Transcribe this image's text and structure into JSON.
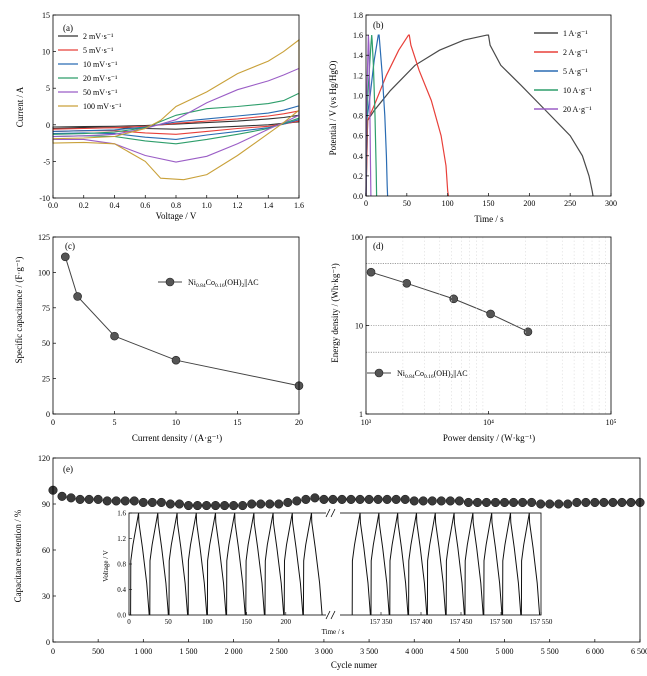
{
  "chart_data": [
    {
      "id": "a",
      "panel_label": "(a)",
      "type": "line",
      "xlabel": "Voltage / V",
      "ylabel": "Current / A",
      "xlim": [
        0,
        1.6
      ],
      "ylim": [
        -10,
        15
      ],
      "xticks": [
        0.0,
        0.2,
        0.4,
        0.6,
        0.8,
        1.0,
        1.2,
        1.4,
        1.6
      ],
      "xtick_labels": [
        "0.0",
        "0.2",
        "0.4",
        "0.6",
        "0.8",
        "1.0",
        "1.2",
        "1.4",
        "1.6"
      ],
      "yticks": [
        -10,
        -5,
        0,
        5,
        10,
        15
      ],
      "ytick_labels": [
        "-10",
        "-5",
        "0",
        "5",
        "10",
        "15"
      ],
      "legend_position": "top-left",
      "series": [
        {
          "name": "2 mV·s⁻¹",
          "color": "#333333",
          "x": [
            0,
            0.2,
            0.4,
            0.6,
            0.8,
            1.0,
            1.2,
            1.4,
            1.5,
            1.6,
            1.6,
            1.5,
            1.4,
            1.2,
            1.0,
            0.8,
            0.6,
            0.4,
            0.2,
            0
          ],
          "y": [
            -0.3,
            -0.25,
            -0.2,
            -0.1,
            0.1,
            0.3,
            0.5,
            0.8,
            1.0,
            1.3,
            0.4,
            0.2,
            0.0,
            -0.2,
            -0.4,
            -0.6,
            -0.5,
            -0.4,
            -0.4,
            -0.5
          ]
        },
        {
          "name": "5 mV·s⁻¹",
          "color": "#e8403a",
          "x": [
            0,
            0.2,
            0.4,
            0.6,
            0.8,
            1.0,
            1.2,
            1.4,
            1.5,
            1.6,
            1.6,
            1.5,
            1.4,
            1.2,
            1.0,
            0.8,
            0.6,
            0.4,
            0.2,
            0
          ],
          "y": [
            -0.6,
            -0.5,
            -0.4,
            -0.2,
            0.2,
            0.5,
            0.8,
            1.2,
            1.5,
            1.9,
            0.5,
            0.1,
            -0.2,
            -0.5,
            -0.9,
            -1.3,
            -1.1,
            -0.8,
            -0.8,
            -0.9
          ]
        },
        {
          "name": "10 mV·s⁻¹",
          "color": "#2a6cb3",
          "x": [
            0,
            0.2,
            0.4,
            0.6,
            0.8,
            1.0,
            1.2,
            1.4,
            1.5,
            1.6,
            1.6,
            1.5,
            1.4,
            1.2,
            1.0,
            0.8,
            0.6,
            0.4,
            0.2,
            0
          ],
          "y": [
            -0.9,
            -0.8,
            -0.7,
            -0.3,
            0.4,
            0.8,
            1.2,
            1.6,
            2.0,
            2.6,
            0.7,
            0.1,
            -0.4,
            -0.9,
            -1.4,
            -2.0,
            -1.7,
            -1.2,
            -1.1,
            -1.2
          ]
        },
        {
          "name": "20 mV·s⁻¹",
          "color": "#2e9e6b",
          "x": [
            0,
            0.2,
            0.4,
            0.6,
            0.8,
            1.0,
            1.2,
            1.4,
            1.5,
            1.6,
            1.6,
            1.5,
            1.4,
            1.2,
            1.0,
            0.8,
            0.6,
            0.4,
            0.2,
            0
          ],
          "y": [
            -1.3,
            -1.2,
            -1.0,
            -0.4,
            1.3,
            2.2,
            2.5,
            2.9,
            3.3,
            4.3,
            0.9,
            0.2,
            -0.5,
            -1.3,
            -2.0,
            -2.6,
            -2.2,
            -1.6,
            -1.5,
            -1.6
          ]
        },
        {
          "name": "50 mV·s⁻¹",
          "color": "#9b5ec6",
          "x": [
            0,
            0.2,
            0.4,
            0.6,
            0.8,
            1.0,
            1.2,
            1.4,
            1.5,
            1.6,
            1.6,
            1.5,
            1.4,
            1.2,
            1.0,
            0.8,
            0.6,
            0.4,
            0.2,
            0
          ],
          "y": [
            -1.6,
            -1.5,
            -1.3,
            -0.5,
            0.7,
            3.0,
            4.8,
            6.0,
            6.8,
            7.7,
            1.3,
            0.3,
            -0.6,
            -2.6,
            -4.3,
            -5.1,
            -4.2,
            -2.6,
            -2.0,
            -2.0
          ]
        },
        {
          "name": "100 mV·s⁻¹",
          "color": "#c9a13a",
          "x": [
            0,
            0.2,
            0.4,
            0.6,
            0.7,
            0.8,
            1.0,
            1.2,
            1.4,
            1.5,
            1.6,
            1.6,
            1.5,
            1.4,
            1.2,
            1.0,
            0.85,
            0.7,
            0.6,
            0.4,
            0.2,
            0
          ],
          "y": [
            -1.9,
            -1.8,
            -1.6,
            -0.5,
            0.6,
            2.5,
            4.5,
            7.0,
            8.7,
            10.0,
            11.6,
            2.0,
            0.3,
            -1.2,
            -4.2,
            -6.8,
            -7.5,
            -7.3,
            -5.0,
            -2.6,
            -2.4,
            -2.5
          ]
        }
      ]
    },
    {
      "id": "b",
      "panel_label": "(b)",
      "type": "line",
      "xlabel": "Time / s",
      "ylabel": "Potential / V (vs Hg/HgO)",
      "xlim": [
        0,
        300
      ],
      "ylim": [
        0,
        1.8
      ],
      "xticks": [
        0,
        50,
        100,
        150,
        200,
        250,
        300
      ],
      "xtick_labels": [
        "0",
        "50",
        "100",
        "150",
        "200",
        "250",
        "300"
      ],
      "yticks": [
        0.0,
        0.2,
        0.4,
        0.6,
        0.8,
        1.0,
        1.2,
        1.4,
        1.6,
        1.8
      ],
      "ytick_labels": [
        "0.0",
        "0.2",
        "0.4",
        "0.6",
        "0.8",
        "1.0",
        "1.2",
        "1.4",
        "1.6",
        "1.8"
      ],
      "legend_position": "top-right",
      "series": [
        {
          "name": "1 A·g⁻¹",
          "color": "#4a4a4a",
          "x": [
            0,
            2,
            10,
            30,
            60,
            90,
            120,
            148,
            150,
            152,
            165,
            190,
            220,
            250,
            265,
            273,
            277,
            278
          ],
          "y": [
            0,
            0.75,
            0.85,
            1.05,
            1.3,
            1.45,
            1.55,
            1.6,
            1.6,
            1.5,
            1.3,
            1.1,
            0.85,
            0.6,
            0.4,
            0.2,
            0.05,
            0
          ]
        },
        {
          "name": "2 A·g⁻¹",
          "color": "#e8403a",
          "x": [
            0,
            2,
            10,
            25,
            40,
            52,
            53,
            55,
            65,
            80,
            92,
            98,
            100,
            101
          ],
          "y": [
            0,
            0.75,
            0.9,
            1.2,
            1.45,
            1.6,
            1.6,
            1.5,
            1.25,
            0.95,
            0.6,
            0.3,
            0.05,
            0
          ]
        },
        {
          "name": "5 A·g⁻¹",
          "color": "#2a6cb3",
          "x": [
            0,
            1,
            5,
            10,
            15,
            16,
            17,
            20,
            23,
            25,
            26,
            26.5
          ],
          "y": [
            0,
            0.75,
            1.0,
            1.35,
            1.6,
            1.6,
            1.5,
            1.2,
            0.8,
            0.4,
            0.1,
            0
          ]
        },
        {
          "name": "10 A·g⁻¹",
          "color": "#2e9e6b",
          "x": [
            0,
            1,
            3,
            6,
            7,
            7.5,
            9,
            11,
            12.5,
            13
          ],
          "y": [
            0,
            0.8,
            1.1,
            1.5,
            1.6,
            1.55,
            1.3,
            0.8,
            0.25,
            0
          ]
        },
        {
          "name": "20 A·g⁻¹",
          "color": "#9b5ec6",
          "x": [
            0,
            0.5,
            2,
            3,
            3.5,
            4.5,
            5.5,
            6
          ],
          "y": [
            0,
            0.8,
            1.3,
            1.6,
            1.5,
            1.0,
            0.3,
            0
          ]
        }
      ]
    },
    {
      "id": "c",
      "panel_label": "(c)",
      "type": "line",
      "xlabel": "Current density / (A·g⁻¹)",
      "ylabel": "Specific capacitance / (F·g⁻¹)",
      "xlim": [
        0,
        20
      ],
      "ylim": [
        0,
        125
      ],
      "xticks": [
        0,
        5,
        10,
        15,
        20
      ],
      "xtick_labels": [
        "0",
        "5",
        "10",
        "15",
        "20"
      ],
      "yticks": [
        0,
        25,
        50,
        75,
        100,
        125
      ],
      "ytick_labels": [
        "0",
        "25",
        "50",
        "75",
        "100",
        "125"
      ],
      "legend_position": "upper-right",
      "series": [
        {
          "name": "Ni0.84Co0.16(OH)2||AC",
          "color": "#444444",
          "x": [
            1,
            2,
            5,
            10,
            20
          ],
          "y": [
            111,
            83,
            55,
            38,
            20
          ]
        }
      ],
      "legend_label": {
        "base1": "Ni",
        "sub1": "0.84",
        "base2": "Co",
        "sub2": "0.16",
        "base3": "(OH)",
        "sub3": "2",
        "tail": "||AC"
      }
    },
    {
      "id": "d",
      "panel_label": "(d)",
      "type": "line",
      "xlabel": "Power density / (W·kg⁻¹)",
      "ylabel": "Energy density / (Wh·kg⁻¹)",
      "xscale": "log",
      "yscale": "log",
      "xlim": [
        1000,
        100000
      ],
      "ylim": [
        1,
        100
      ],
      "xtick_labels": [
        "10³",
        "10⁴",
        "10⁵"
      ],
      "ytick_labels": [
        "1",
        "10",
        "100"
      ],
      "reference_lines_y": [
        50,
        10,
        5
      ],
      "legend_position": "lower-left",
      "series": [
        {
          "name": "Ni0.84Co0.16(OH)2||AC",
          "color": "#444444",
          "x": [
            1100,
            2150,
            5200,
            10400,
            21000
          ],
          "y": [
            40,
            30,
            20,
            13.5,
            8.5
          ]
        }
      ],
      "legend_label": {
        "base1": "Ni",
        "sub1": "0.84",
        "base2": "Co",
        "sub2": "0.16",
        "base3": "(OH)",
        "sub3": "2",
        "tail": "||AC"
      }
    },
    {
      "id": "e",
      "panel_label": "(e)",
      "type": "scatter",
      "xlabel": "Cycle numer",
      "ylabel": "Capacitance retention / %",
      "xlim": [
        0,
        6500
      ],
      "ylim": [
        0,
        120
      ],
      "xticks": [
        0,
        500,
        1000,
        1500,
        2000,
        2500,
        3000,
        3500,
        4000,
        4500,
        5000,
        5500,
        6000,
        6500
      ],
      "xtick_labels": [
        "0",
        "500",
        "1 000",
        "1 500",
        "2 000",
        "2 500",
        "3 000",
        "3 500",
        "4 000",
        "4 500",
        "5 000",
        "5 500",
        "6 000",
        "6 500"
      ],
      "yticks": [
        0,
        30,
        60,
        90,
        120
      ],
      "ytick_labels": [
        "0",
        "30",
        "60",
        "90",
        "120"
      ],
      "series": [
        {
          "name": "retention",
          "color": "#333333",
          "x": [
            0,
            100,
            200,
            300,
            400,
            500,
            600,
            700,
            800,
            900,
            1000,
            1100,
            1200,
            1300,
            1400,
            1500,
            1600,
            1700,
            1800,
            1900,
            2000,
            2100,
            2200,
            2300,
            2400,
            2500,
            2600,
            2700,
            2800,
            2900,
            3000,
            3100,
            3200,
            3300,
            3400,
            3500,
            3600,
            3700,
            3800,
            3900,
            4000,
            4100,
            4200,
            4300,
            4400,
            4500,
            4600,
            4700,
            4800,
            4900,
            5000,
            5100,
            5200,
            5300,
            5400,
            5500,
            5600,
            5700,
            5800,
            5900,
            6000,
            6100,
            6200,
            6300,
            6400,
            6500
          ],
          "y": [
            99,
            95,
            94,
            93,
            93,
            93,
            92,
            92,
            92,
            92,
            91,
            91,
            91,
            90,
            90,
            89,
            89,
            89,
            89,
            89,
            89,
            89,
            90,
            90,
            90,
            90,
            91,
            92,
            93,
            94,
            93,
            93,
            93,
            93,
            93,
            93,
            93,
            93,
            93,
            93,
            92,
            92,
            92,
            92,
            92,
            92,
            91,
            91,
            91,
            91,
            91,
            91,
            91,
            91,
            90,
            90,
            90,
            90,
            91,
            91,
            91,
            91,
            91,
            91,
            91,
            91
          ]
        }
      ],
      "inset": {
        "xlabel": "Time / s",
        "ylabel": "Voltage / V",
        "ylim": [
          0,
          1.6
        ],
        "yticks": [
          0.0,
          0.4,
          0.8,
          1.2,
          1.6
        ],
        "ytick_labels": [
          "0.0",
          "0.4",
          "0.8",
          "1.2",
          "1.6"
        ],
        "left_segment": {
          "xlim": [
            0,
            250
          ],
          "xticks": [
            0,
            50,
            100,
            150,
            200
          ],
          "xtick_labels": [
            "0",
            "50",
            "100",
            "150",
            "200"
          ],
          "cycle_period_s": 24.5,
          "cycles": 10
        },
        "right_segment": {
          "xlim": [
            157300,
            157550
          ],
          "xticks": [
            157350,
            157400,
            157450,
            157500,
            157550
          ],
          "xtick_labels": [
            "157 350",
            "157 400",
            "157 450",
            "157 500",
            "157 550"
          ],
          "cycle_period_s": 23.5,
          "cycles": 10
        }
      }
    }
  ]
}
